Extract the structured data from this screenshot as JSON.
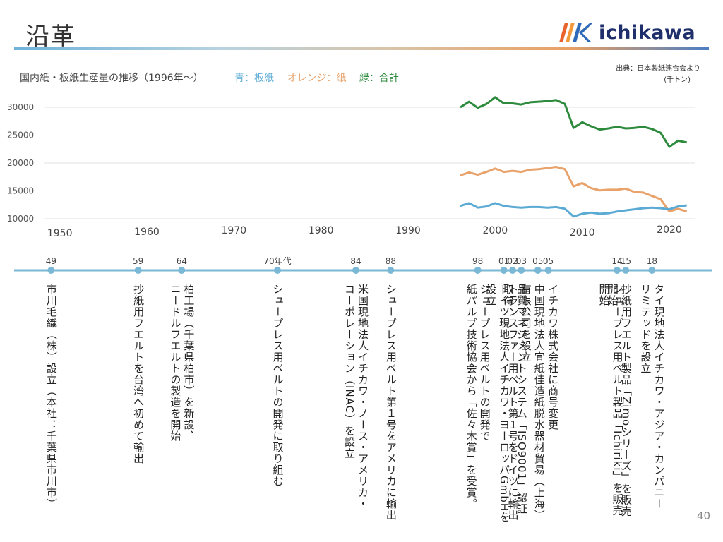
{
  "slide": {
    "title": "沿革",
    "page_number": "40"
  },
  "logo": {
    "text": "ichikawa",
    "colors": [
      "#e8632b",
      "#f29a3a",
      "#2e6ab8",
      "#1e2f6b"
    ]
  },
  "chart_title": "国内紙・板紙生産量の推移（1996年～）",
  "legend": [
    {
      "label": "青：板紙",
      "color": "#5aaad4"
    },
    {
      "label": "オレンジ：紙",
      "color": "#e8a26a"
    },
    {
      "label": "緑：合計",
      "color": "#2e8b3e"
    }
  ],
  "source": {
    "line1": "出典：日本製紙連合会より",
    "line2": "(千トン)"
  },
  "chart_data": {
    "type": "line",
    "ylim": [
      10000,
      32000
    ],
    "yticks": [
      10000,
      15000,
      20000,
      25000,
      30000
    ],
    "xlim": [
      1948,
      2023
    ],
    "xticks": [
      1950,
      1960,
      1970,
      1980,
      1990,
      2000,
      2010,
      2020
    ],
    "series": [
      {
        "color": "#2e8b3e",
        "x": [
          1996,
          1997,
          1998,
          1999,
          2000,
          2001,
          2002,
          2003,
          2004,
          2005,
          2006,
          2007,
          2008,
          2009,
          2010,
          2011,
          2012,
          2013,
          2014,
          2015,
          2016,
          2017,
          2018,
          2019,
          2020,
          2021,
          2022
        ],
        "values": [
          30000,
          31000,
          29900,
          30600,
          31800,
          30700,
          30700,
          30500,
          30900,
          31000,
          31100,
          31300,
          30600,
          26300,
          27300,
          26600,
          26000,
          26200,
          26500,
          26200,
          26300,
          26500,
          26100,
          25400,
          22900,
          24000,
          23700
        ]
      },
      {
        "color": "#e8a26a",
        "x": [
          1996,
          1997,
          1998,
          1999,
          2000,
          2001,
          2002,
          2003,
          2004,
          2005,
          2006,
          2007,
          2008,
          2009,
          2010,
          2011,
          2012,
          2013,
          2014,
          2015,
          2016,
          2017,
          2018,
          2019,
          2020,
          2021,
          2022
        ],
        "values": [
          17800,
          18300,
          17900,
          18400,
          19000,
          18400,
          18600,
          18400,
          18800,
          18900,
          19100,
          19300,
          18900,
          15800,
          16400,
          15500,
          15100,
          15200,
          15200,
          15400,
          14800,
          14700,
          14100,
          13500,
          11300,
          11800,
          11300
        ]
      },
      {
        "color": "#5aaad4",
        "x": [
          1996,
          1997,
          1998,
          1999,
          2000,
          2001,
          2002,
          2003,
          2004,
          2005,
          2006,
          2007,
          2008,
          2009,
          2010,
          2011,
          2012,
          2013,
          2014,
          2015,
          2016,
          2017,
          2018,
          2019,
          2020,
          2021,
          2022
        ],
        "values": [
          12300,
          12800,
          12000,
          12200,
          12800,
          12300,
          12100,
          12000,
          12100,
          12100,
          12000,
          12100,
          11800,
          10400,
          10900,
          11100,
          10900,
          11000,
          11300,
          11500,
          11700,
          11900,
          12000,
          11900,
          11700,
          12200,
          12400
        ]
      }
    ]
  },
  "timeline": {
    "color": "#7ab8d6",
    "events": [
      {
        "year": 1949,
        "label": "49",
        "text": "市川毛織（株）設立（本社：千葉県市川市）"
      },
      {
        "year": 1959,
        "label": "59",
        "text": "抄紙用フエルトを台湾へ初めて輸出"
      },
      {
        "year": 1964,
        "label": "64",
        "text": "柏工場（千葉県柏市）を新設、\nニードルフエルトの製造を開始"
      },
      {
        "year": 1975,
        "label": "70年代",
        "text": "シュープレス用ベルトの開発に取り組む"
      },
      {
        "year": 1984,
        "label": "84",
        "text": "米国現地法人イチカワ・ノース・アメリカ・\nコーポレーション（INAC）を設立"
      },
      {
        "year": 1988,
        "label": "88",
        "text": "シュープレス用ベルト第１号をアメリカに輸出"
      },
      {
        "year": 1998,
        "label": "98",
        "text": "シュープレス用ベルトの開発で\n紙パルプ技術協会から「佐々木賞」を受賞。"
      },
      {
        "year": 2001,
        "label": "01",
        "text": "ドイツ現地法人イチカワ・ヨーロッパGmbHを設立"
      },
      {
        "year": 2002,
        "label": "02",
        "text": "トランスファー用ベルト第１号をドイツに輸出"
      },
      {
        "year": 2003,
        "label": "03",
        "text": "品質マネジメントシステム「ISO9001」認証取得"
      },
      {
        "year": 2005,
        "label": "05",
        "text": "中国現地法人宜紙佳造紙脱水器材貿易（上海）\n有限公司を設立"
      },
      {
        "year": 2005,
        "label": "05",
        "text": "イチカワ株式会社に商号変更"
      },
      {
        "year": 2014,
        "label": "14",
        "text": "シュープレス用ベルト製品「Ichiriki」を販売開始"
      },
      {
        "year": 2015,
        "label": "15",
        "text": "抄紙用フエルト製品「Zimoシリーズ」を販売開始"
      },
      {
        "year": 2018,
        "label": "18",
        "text": "タイ現地法人イチカワ・アジア・カンパニー\nリミテッドを設立"
      }
    ]
  }
}
